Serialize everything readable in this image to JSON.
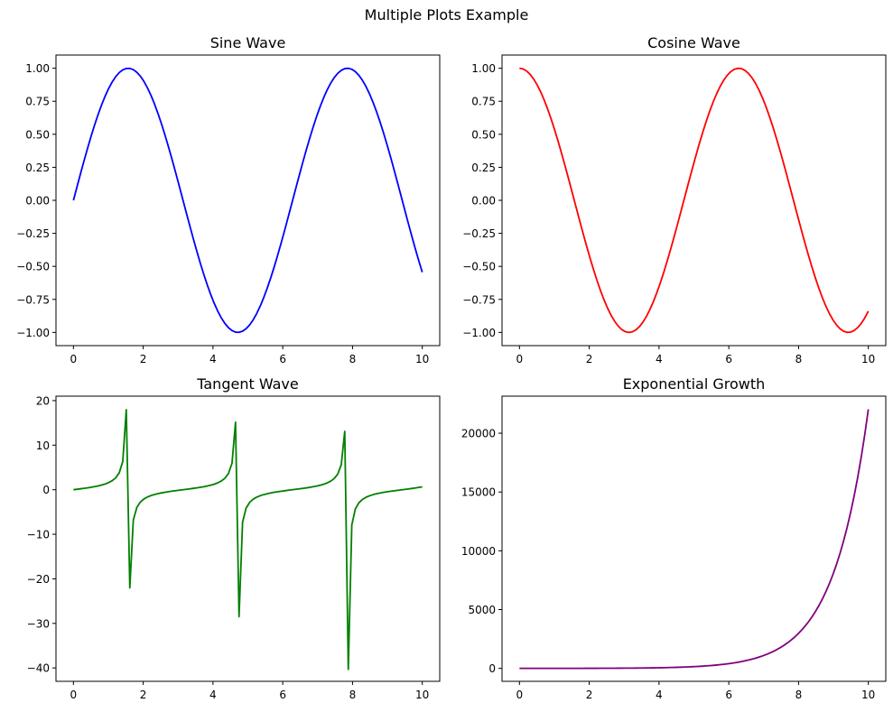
{
  "figure": {
    "suptitle": "Multiple Plots Example"
  },
  "chart_data": [
    {
      "type": "line",
      "title": "Sine Wave",
      "xlabel": "",
      "ylabel": "",
      "function": "sin",
      "x_range": [
        0,
        10
      ],
      "samples": 100,
      "color": "#0000ff",
      "xlim": [
        -0.5,
        10.5
      ],
      "ylim": [
        -1.1,
        1.1
      ],
      "xticks": [
        0,
        2,
        4,
        6,
        8,
        10
      ],
      "yticks": [
        -1.0,
        -0.75,
        -0.5,
        -0.25,
        0.0,
        0.25,
        0.5,
        0.75,
        1.0
      ],
      "ytick_labels": [
        "−1.00",
        "−0.75",
        "−0.50",
        "−0.25",
        "0.00",
        "0.25",
        "0.50",
        "0.75",
        "1.00"
      ],
      "grid": false
    },
    {
      "type": "line",
      "title": "Cosine Wave",
      "xlabel": "",
      "ylabel": "",
      "function": "cos",
      "x_range": [
        0,
        10
      ],
      "samples": 100,
      "color": "#ff0000",
      "xlim": [
        -0.5,
        10.5
      ],
      "ylim": [
        -1.1,
        1.1
      ],
      "xticks": [
        0,
        2,
        4,
        6,
        8,
        10
      ],
      "yticks": [
        -1.0,
        -0.75,
        -0.5,
        -0.25,
        0.0,
        0.25,
        0.5,
        0.75,
        1.0
      ],
      "ytick_labels": [
        "−1.00",
        "−0.75",
        "−0.50",
        "−0.25",
        "0.00",
        "0.25",
        "0.50",
        "0.75",
        "1.00"
      ],
      "grid": false
    },
    {
      "type": "line",
      "title": "Tangent Wave",
      "xlabel": "",
      "ylabel": "",
      "function": "tan",
      "x_range": [
        0,
        10
      ],
      "samples": 100,
      "color": "#008000",
      "xlim": [
        -0.5,
        10.5
      ],
      "ylim": [
        -43.0,
        21.0
      ],
      "xticks": [
        0,
        2,
        4,
        6,
        8,
        10
      ],
      "yticks": [
        -40,
        -30,
        -20,
        -10,
        0,
        10,
        20
      ],
      "ytick_labels": [
        "−40",
        "−30",
        "−20",
        "−10",
        "0",
        "10",
        "20"
      ],
      "grid": false
    },
    {
      "type": "line",
      "title": "Exponential Growth",
      "xlabel": "",
      "ylabel": "",
      "function": "exp",
      "x_range": [
        0,
        10
      ],
      "samples": 100,
      "color": "#800080",
      "xlim": [
        -0.5,
        10.5
      ],
      "ylim": [
        -1100,
        23150
      ],
      "xticks": [
        0,
        2,
        4,
        6,
        8,
        10
      ],
      "yticks": [
        0,
        5000,
        10000,
        15000,
        20000
      ],
      "ytick_labels": [
        "0",
        "5000",
        "10000",
        "15000",
        "20000"
      ],
      "grid": false
    }
  ]
}
